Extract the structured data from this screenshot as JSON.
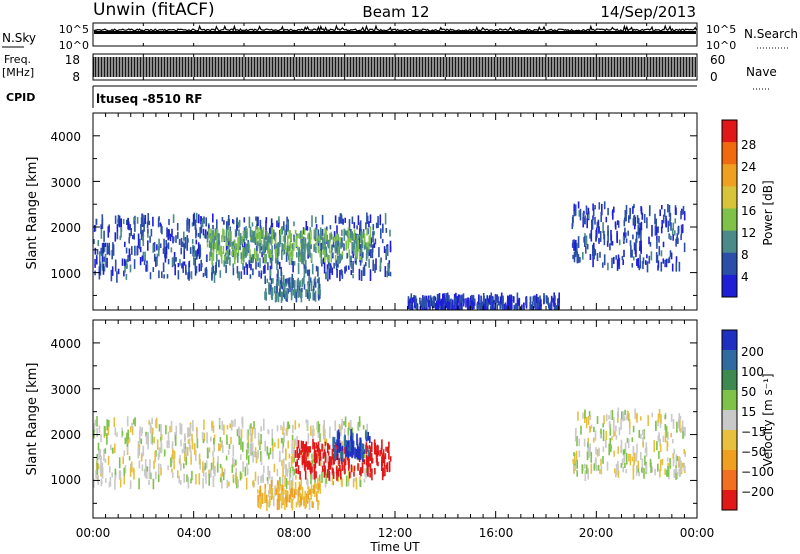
{
  "header": {
    "station": "Unwin (fitACF)",
    "beam": "Beam 12",
    "date": "14/Sep/2013"
  },
  "strips": {
    "nsky_label": "N.Sky",
    "nsky_ticks": [
      "10^5",
      "10^0"
    ],
    "nsearch_label": "N.Search",
    "freq_label_1": "Freq.",
    "freq_label_2": "[MHz]",
    "freq_ticks": [
      "18",
      "8"
    ],
    "nave_label": "Nave",
    "nave_ticks": [
      "60",
      "0"
    ],
    "cpid_label": "CPID",
    "cpid_value": "ltuseq -8510 RF"
  },
  "colorbars": {
    "power": {
      "label": "Power [dB]",
      "ticks": [
        "28",
        "24",
        "20",
        "16",
        "12",
        "8",
        "4"
      ],
      "colors": [
        "#1f1fd6",
        "#2b4fa8",
        "#4a8a88",
        "#7fc24a",
        "#d8c43a",
        "#f0a020",
        "#f06a10",
        "#e01818"
      ]
    },
    "velocity": {
      "label": "Velocity [m s⁻¹]",
      "ticks": [
        "200",
        "100",
        "50",
        "15",
        "−15",
        "−50",
        "−100",
        "−200"
      ],
      "colors": [
        "#1f2fc0",
        "#2f6aa0",
        "#3c8a50",
        "#7fc24a",
        "#c9c9c9",
        "#e8c040",
        "#f0a020",
        "#f07020",
        "#e01818"
      ]
    }
  },
  "chart_data": [
    {
      "type": "heatmap",
      "panel": "power",
      "ylabel": "Slant Range [km]",
      "xlabel": "",
      "ylim": [
        180,
        4500
      ],
      "xlim": [
        "00:00",
        "24:00"
      ],
      "yticks": [
        "4000",
        "3000",
        "2000",
        "1000"
      ],
      "xticks": [
        "00:00",
        "04:00",
        "08:00",
        "12:00",
        "16:00",
        "20:00",
        "00:00"
      ],
      "regions": [
        {
          "t_start": 0.0,
          "t_end": 11.9,
          "range_min": 900,
          "range_max": 2200,
          "level_db": 6
        },
        {
          "t_start": 4.5,
          "t_end": 11.0,
          "range_min": 1300,
          "range_max": 1900,
          "level_db": 12
        },
        {
          "t_start": 6.8,
          "t_end": 9.0,
          "range_min": 450,
          "range_max": 850,
          "level_db": 8
        },
        {
          "t_start": 19.0,
          "t_end": 23.5,
          "range_min": 1100,
          "range_max": 2500,
          "level_db": 5
        },
        {
          "t_start": 12.5,
          "t_end": 18.5,
          "range_min": 180,
          "range_max": 450,
          "level_db": 4
        }
      ]
    },
    {
      "type": "heatmap",
      "panel": "velocity",
      "ylabel": "Slant Range [km]",
      "xlabel": "Time UT",
      "ylim": [
        180,
        4500
      ],
      "xlim": [
        "00:00",
        "24:00"
      ],
      "yticks": [
        "4000",
        "3000",
        "2000",
        "1000"
      ],
      "xticks": [
        "00:00",
        "04:00",
        "08:00",
        "12:00",
        "16:00",
        "20:00",
        "00:00"
      ],
      "regions": [
        {
          "t_start": 0.0,
          "t_end": 11.0,
          "range_min": 900,
          "range_max": 2300,
          "velocity": 0
        },
        {
          "t_start": 8.0,
          "t_end": 11.8,
          "range_min": 1100,
          "range_max": 1800,
          "velocity": -250
        },
        {
          "t_start": 6.5,
          "t_end": 9.0,
          "range_min": 450,
          "range_max": 900,
          "velocity": -40
        },
        {
          "t_start": 9.5,
          "t_end": 11.0,
          "range_min": 1500,
          "range_max": 2000,
          "velocity": 150
        },
        {
          "t_start": 19.0,
          "t_end": 23.5,
          "range_min": 1100,
          "range_max": 2500,
          "velocity": 0
        }
      ]
    }
  ]
}
